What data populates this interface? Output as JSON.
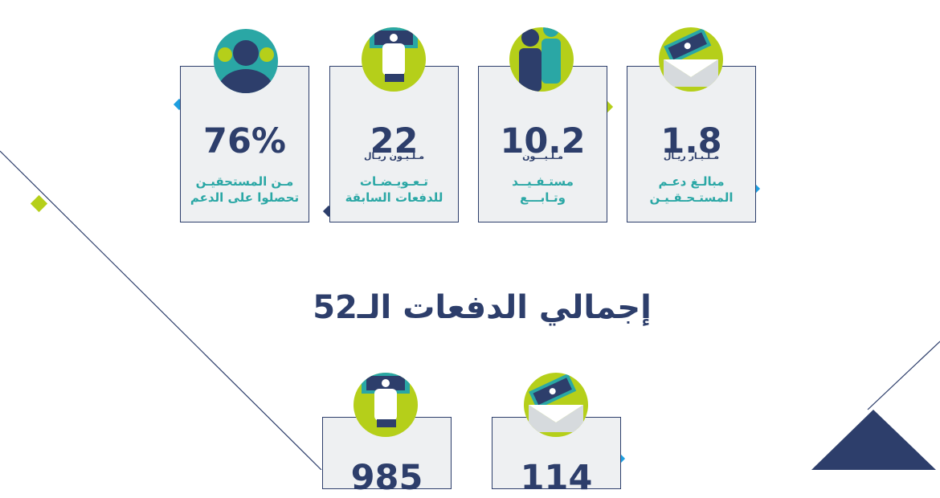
{
  "top_cards": [
    {
      "value": "76%",
      "unit": "",
      "desc_line1": "مـن المستحقيـن",
      "desc_line2": "تحصلوا على الدعم",
      "icon": "people-group-icon"
    },
    {
      "value": "22",
      "unit": "مـلـيـون ريـال",
      "desc_line1": "تـعـويـضـات",
      "desc_line2": "للدفعات السابقة",
      "icon": "hand-money-icon"
    },
    {
      "value": "10.2",
      "unit": "مـلـيـــون",
      "desc_line1": "مستـفـيــد",
      "desc_line2": "وتـابـــع",
      "icon": "two-persons-icon"
    },
    {
      "value": "1.8",
      "unit": "مـلـيـار ريـال",
      "desc_line1": "مبالـغ دعـم",
      "desc_line2": "المستـحـقـيـن",
      "icon": "money-envelope-icon"
    }
  ],
  "section_title": "إجمالي الدفعات الـ52",
  "bottom_cards": [
    {
      "value": "985",
      "icon": "hand-money-icon"
    },
    {
      "value": "114",
      "icon": "money-envelope-icon"
    }
  ],
  "colors": {
    "navy": "#2d3e6b",
    "teal": "#2aa7a5",
    "lime": "#b5cf1a",
    "card_bg": "#eef0f2",
    "blue_accent": "#1e9fe0"
  }
}
